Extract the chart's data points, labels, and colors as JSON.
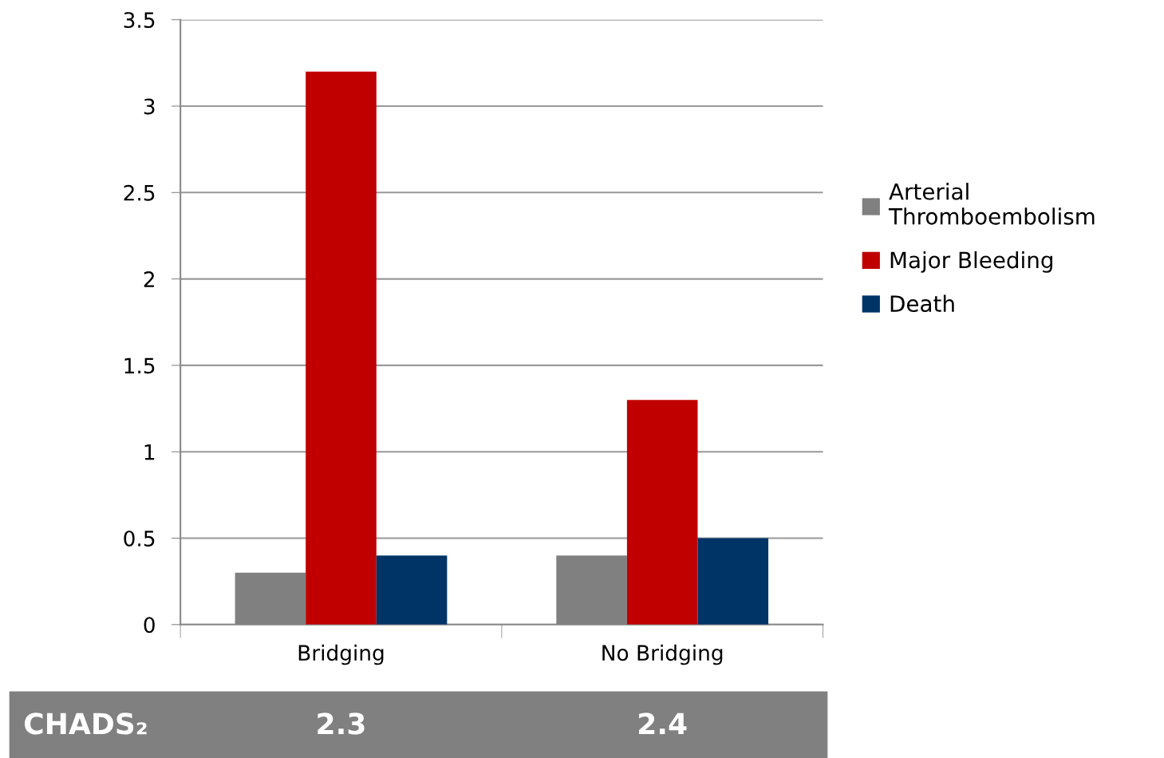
{
  "chart_data": {
    "type": "bar",
    "categories": [
      "Bridging",
      "No Bridging"
    ],
    "series": [
      {
        "name": "Arterial Thromboembolism",
        "color": "#808080",
        "values": [
          0.3,
          0.4
        ]
      },
      {
        "name": "Major Bleeding",
        "color": "#c00000",
        "values": [
          3.2,
          1.3
        ]
      },
      {
        "name": "Death",
        "color": "#003366",
        "values": [
          0.4,
          0.5
        ]
      }
    ],
    "ylim": [
      0,
      3.5
    ],
    "yticks": [
      0,
      0.5,
      1,
      1.5,
      2,
      2.5,
      3,
      3.5
    ],
    "grid": "y",
    "legend": "right",
    "annotations": [
      "CHADS₂",
      "2.3",
      "2.4"
    ]
  }
}
